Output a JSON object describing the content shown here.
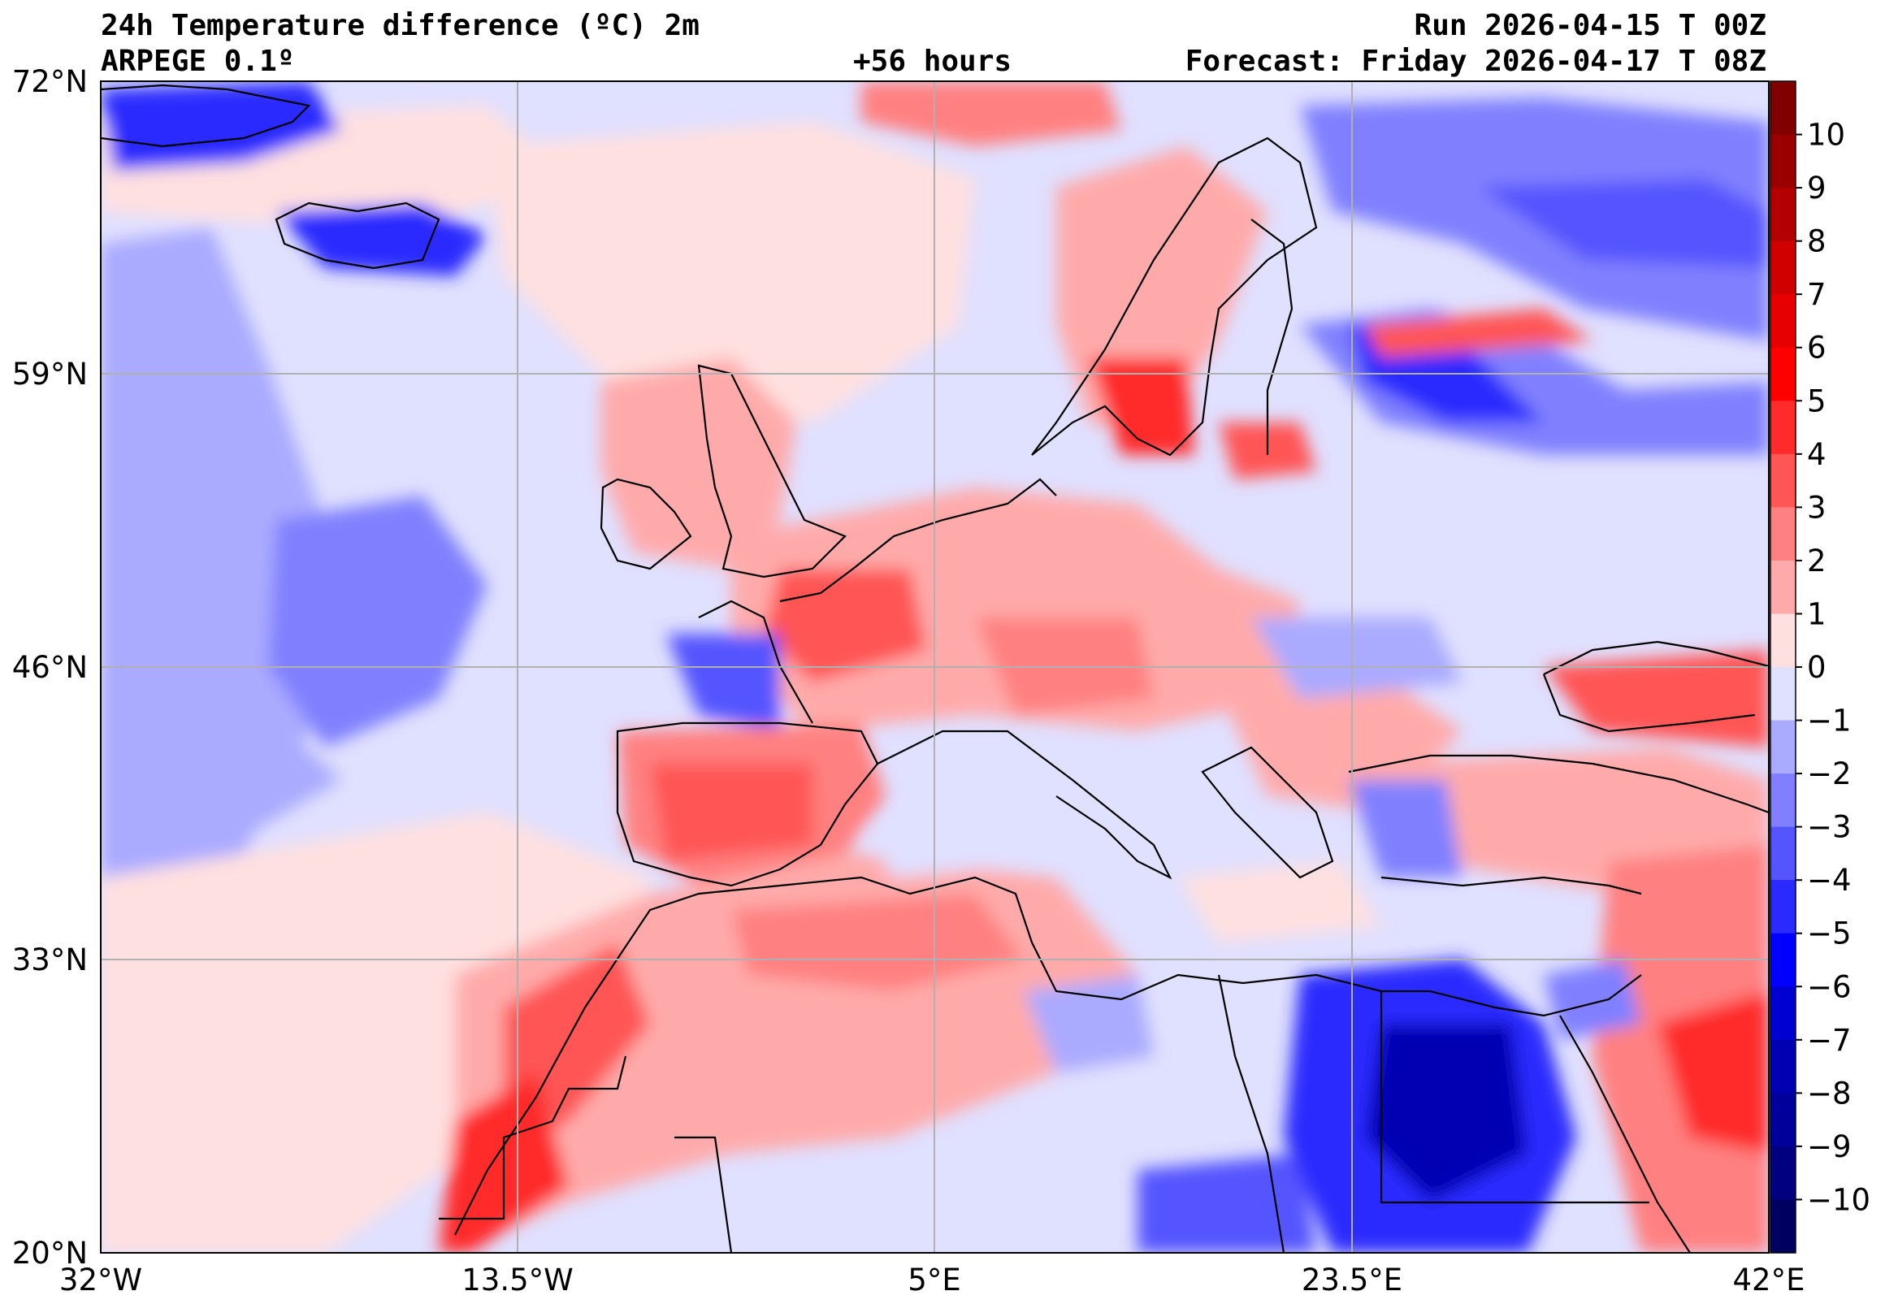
{
  "header": {
    "title_line1": "24h Temperature difference (ºC) 2m",
    "title_line2": "ARPEGE 0.1º",
    "lead_time": "+56 hours",
    "run": "Run 2026-04-15 T 00Z",
    "forecast": "Forecast: Friday 2026-04-17 T 08Z"
  },
  "map": {
    "projection": "plate carree",
    "lon_range": [
      -32,
      42
    ],
    "lat_range": [
      20,
      72
    ],
    "lat_labels": [
      "72°N",
      "59°N",
      "46°N",
      "33°N",
      "20°N"
    ],
    "lon_labels": [
      "32°W",
      "13.5°W",
      "5°E",
      "23.5°E",
      "42°E"
    ],
    "gridlines": true
  },
  "colorbar": {
    "ticks": [
      "10",
      "9",
      "8",
      "7",
      "6",
      "5",
      "4",
      "3",
      "2",
      "1",
      "0",
      "−1",
      "−2",
      "−3",
      "−4",
      "−5",
      "−6",
      "−7",
      "−8",
      "−9",
      "−10"
    ],
    "colors": [
      "#800000",
      "#9b0000",
      "#b30000",
      "#d10000",
      "#e60000",
      "#ff0000",
      "#ff2a2a",
      "#ff5555",
      "#ff8080",
      "#ffaaaa",
      "#ffe0e0",
      "#e0e0ff",
      "#aaaaff",
      "#8080ff",
      "#5555ff",
      "#2a2aff",
      "#0000ff",
      "#0000d1",
      "#0000b3",
      "#00009b",
      "#000080",
      "#000060"
    ]
  }
}
